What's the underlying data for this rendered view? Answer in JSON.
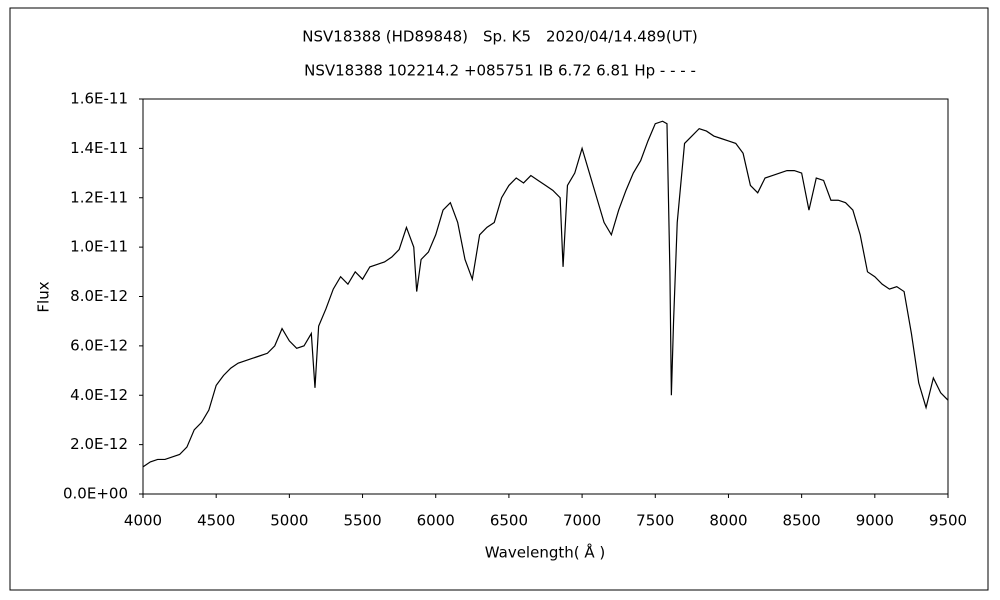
{
  "chart_data": {
    "type": "line",
    "title": "NSV18388 (HD89848)　Sp. K5　2020/04/14.489(UT)",
    "subtitle": "NSV18388 102214.2 +085751 IB 6.72 6.81 Hp - - - -",
    "xlabel": "Wavelength( Å )",
    "ylabel": "Flux",
    "color": "#000000",
    "x": [
      4000,
      4050,
      4100,
      4150,
      4200,
      4250,
      4300,
      4350,
      4400,
      4450,
      4500,
      4550,
      4600,
      4650,
      4700,
      4750,
      4800,
      4850,
      4900,
      4950,
      5000,
      5050,
      5100,
      5150,
      5175,
      5200,
      5250,
      5300,
      5350,
      5400,
      5450,
      5500,
      5550,
      5600,
      5650,
      5700,
      5750,
      5800,
      5850,
      5870,
      5900,
      5950,
      6000,
      6050,
      6100,
      6150,
      6200,
      6250,
      6300,
      6350,
      6400,
      6450,
      6500,
      6550,
      6600,
      6650,
      6700,
      6750,
      6800,
      6850,
      6870,
      6900,
      6950,
      7000,
      7050,
      7100,
      7150,
      7200,
      7250,
      7300,
      7350,
      7400,
      7450,
      7500,
      7550,
      7580,
      7600,
      7610,
      7625,
      7650,
      7700,
      7750,
      7800,
      7850,
      7900,
      7950,
      8000,
      8050,
      8100,
      8150,
      8200,
      8250,
      8300,
      8350,
      8400,
      8450,
      8500,
      8550,
      8600,
      8650,
      8700,
      8750,
      8800,
      8850,
      8900,
      8950,
      9000,
      9050,
      9100,
      9150,
      9200,
      9250,
      9300,
      9350,
      9400,
      9450,
      9500
    ],
    "values": [
      1.1e-12,
      1.3e-12,
      1.4e-12,
      1.4e-12,
      1.5e-12,
      1.6e-12,
      1.9e-12,
      2.6e-12,
      2.9e-12,
      3.4e-12,
      4.4e-12,
      4.8e-12,
      5.1e-12,
      5.3e-12,
      5.4e-12,
      5.5e-12,
      5.6e-12,
      5.7e-12,
      6e-12,
      6.7e-12,
      6.2e-12,
      5.9e-12,
      6e-12,
      6.5e-12,
      4.3e-12,
      6.8e-12,
      7.5e-12,
      8.3e-12,
      8.8e-12,
      8.5e-12,
      9e-12,
      8.7e-12,
      9.2e-12,
      9.3e-12,
      9.4e-12,
      9.6e-12,
      9.9e-12,
      1.08e-11,
      1e-11,
      8.2e-12,
      9.5e-12,
      9.8e-12,
      1.05e-11,
      1.15e-11,
      1.18e-11,
      1.1e-11,
      9.5e-12,
      8.7e-12,
      1.05e-11,
      1.08e-11,
      1.1e-11,
      1.2e-11,
      1.25e-11,
      1.28e-11,
      1.26e-11,
      1.29e-11,
      1.27e-11,
      1.25e-11,
      1.23e-11,
      1.2e-11,
      9.2e-12,
      1.25e-11,
      1.3e-11,
      1.4e-11,
      1.3e-11,
      1.2e-11,
      1.1e-11,
      1.05e-11,
      1.15e-11,
      1.23e-11,
      1.3e-11,
      1.35e-11,
      1.43e-11,
      1.5e-11,
      1.51e-11,
      1.5e-11,
      9e-12,
      4e-12,
      7e-12,
      1.1e-11,
      1.42e-11,
      1.45e-11,
      1.48e-11,
      1.47e-11,
      1.45e-11,
      1.44e-11,
      1.43e-11,
      1.42e-11,
      1.38e-11,
      1.25e-11,
      1.22e-11,
      1.28e-11,
      1.29e-11,
      1.3e-11,
      1.31e-11,
      1.31e-11,
      1.3e-11,
      1.15e-11,
      1.28e-11,
      1.27e-11,
      1.19e-11,
      1.19e-11,
      1.18e-11,
      1.15e-11,
      1.05e-11,
      9e-12,
      8.8e-12,
      8.5e-12,
      8.3e-12,
      8.4e-12,
      8.2e-12,
      6.5e-12,
      4.5e-12,
      3.5e-12,
      4.7e-12,
      4.1e-12,
      3.8e-12
    ],
    "xlim": [
      4000,
      9500
    ],
    "xticks": [
      4000,
      4500,
      5000,
      5500,
      6000,
      6500,
      7000,
      7500,
      8000,
      8500,
      9000,
      9500
    ],
    "ylim": [
      0,
      1.6e-11
    ],
    "yticks": [
      {
        "value": 0,
        "label": "0.0E+00"
      },
      {
        "value": 2e-12,
        "label": "2.0E-12"
      },
      {
        "value": 4e-12,
        "label": "4.0E-12"
      },
      {
        "value": 6e-12,
        "label": "6.0E-12"
      },
      {
        "value": 8e-12,
        "label": "8.0E-12"
      },
      {
        "value": 1e-11,
        "label": "1.0E-11"
      },
      {
        "value": 1.2e-11,
        "label": "1.2E-11"
      },
      {
        "value": 1.4e-11,
        "label": "1.4E-11"
      },
      {
        "value": 1.6e-11,
        "label": "1.6E-11"
      }
    ],
    "grid": false
  }
}
